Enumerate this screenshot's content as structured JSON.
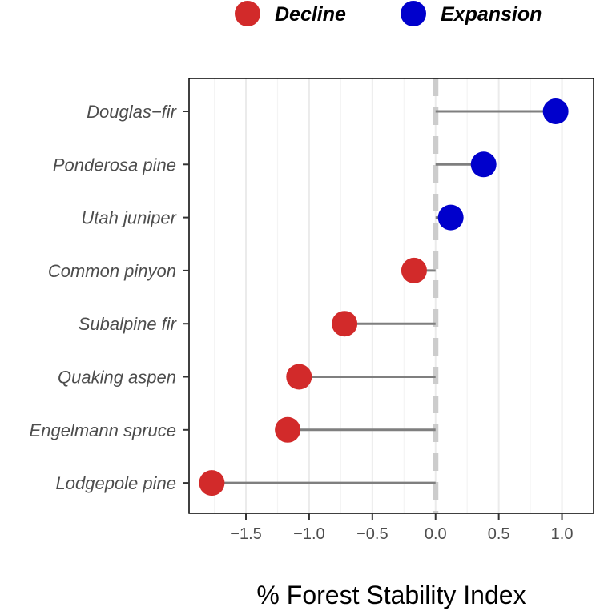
{
  "chart_data": {
    "type": "lollipop",
    "xlabel": "% Forest Stability Index",
    "xlim": [
      -1.95,
      1.25
    ],
    "xticks": [
      -1.5,
      -1.0,
      -0.5,
      0.0,
      0.5,
      1.0
    ],
    "xtick_labels": [
      "−1.5",
      "−1.0",
      "−0.5",
      "0.0",
      "0.5",
      "1.0"
    ],
    "grid": "vertical, light gray",
    "reference_line": {
      "x": 0,
      "style": "dashed",
      "color": "#cccccc"
    },
    "legend": {
      "position": "top",
      "entries": [
        {
          "label": "Decline",
          "color": "#d22a2a"
        },
        {
          "label": "Expansion",
          "color": "#0000cc"
        }
      ]
    },
    "categories": [
      "Douglas−fir",
      "Ponderosa pine",
      "Utah juniper",
      "Common pinyon",
      "Subalpine fir",
      "Quaking aspen",
      "Engelmann spruce",
      "Lodgepole pine"
    ],
    "values": [
      0.95,
      0.38,
      0.12,
      -0.17,
      -0.72,
      -1.08,
      -1.17,
      -1.77
    ],
    "groups": [
      "Expansion",
      "Expansion",
      "Expansion",
      "Decline",
      "Decline",
      "Decline",
      "Decline",
      "Decline"
    ],
    "colors": {
      "Decline": "#d22a2a",
      "Expansion": "#0000cc",
      "stem": "#7f7f7f"
    }
  }
}
